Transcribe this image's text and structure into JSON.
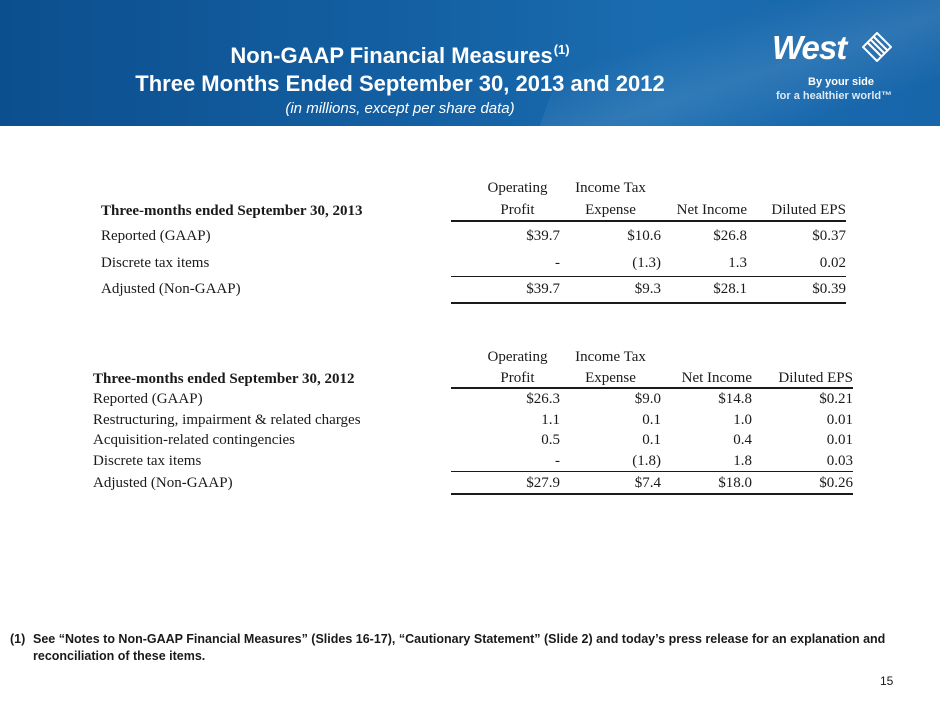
{
  "header": {
    "title_line1": "Non-GAAP Financial Measures",
    "title_sup": "(1)",
    "title_line2": "Three Months Ended September 30, 2013 and 2012",
    "subtitle": "(in millions, except per share data)",
    "bg_color": "#1460a3"
  },
  "logo": {
    "word": "West",
    "tagline1": "By your side",
    "tagline2": "for a healthier world™"
  },
  "table_2013": {
    "period_label": "Three-months ended September 30, 2013",
    "col1_line1": "Operating",
    "col1_line2": "Profit",
    "col2_line1": "Income Tax",
    "col2_line2": "Expense",
    "col3": "Net Income",
    "col4": "Diluted EPS",
    "rows": [
      {
        "label": "Reported (GAAP)",
        "op": "$39.7",
        "tax": "$10.6",
        "ni": "$26.8",
        "eps": "$0.37"
      },
      {
        "label": "Discrete tax items",
        "op": "-",
        "tax": "(1.3)",
        "ni": "1.3",
        "eps": "0.02"
      },
      {
        "label": "Adjusted (Non-GAAP)",
        "op": "$39.7",
        "tax": "$9.3",
        "ni": "$28.1",
        "eps": "$0.39"
      }
    ]
  },
  "table_2012": {
    "period_label": "Three-months ended September 30, 2012",
    "col1_line1": "Operating",
    "col1_line2": "Profit",
    "col2_line1": "Income Tax",
    "col2_line2": "Expense",
    "col3": "Net Income",
    "col4": "Diluted EPS",
    "rows": [
      {
        "label": "Reported (GAAP)",
        "op": "$26.3",
        "tax": "$9.0",
        "ni": "$14.8",
        "eps": "$0.21"
      },
      {
        "label": "Restructuring, impairment & related charges",
        "op": "1.1",
        "tax": "0.1",
        "ni": "1.0",
        "eps": "0.01"
      },
      {
        "label": "Acquisition-related contingencies",
        "op": "0.5",
        "tax": "0.1",
        "ni": "0.4",
        "eps": "0.01"
      },
      {
        "label": "Discrete tax items",
        "op": "-",
        "tax": "(1.8)",
        "ni": "1.8",
        "eps": "0.03"
      },
      {
        "label": "Adjusted (Non-GAAP)",
        "op": "$27.9",
        "tax": "$7.4",
        "ni": "$18.0",
        "eps": "$0.26"
      }
    ]
  },
  "footnote": {
    "number": "(1)",
    "text": "See “Notes to Non-GAAP Financial Measures” (Slides 16-17), “Cautionary Statement” (Slide 2) and today’s press release for an explanation and reconciliation of these items."
  },
  "page_number": "15"
}
